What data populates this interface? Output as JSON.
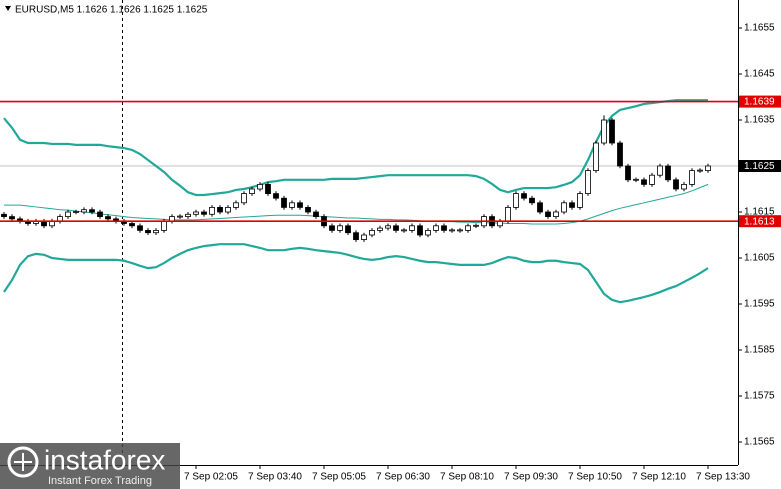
{
  "chart_data": {
    "type": "candlestick",
    "title": "EURUSD,M5  1.1626 1.1626 1.1625 1.1625",
    "categories": [
      null,
      null,
      null,
      null,
      null,
      null,
      null,
      null,
      null,
      null,
      null,
      null,
      null,
      null,
      null,
      null,
      null,
      null,
      null,
      null,
      null,
      null,
      null,
      null,
      "7 Sep 02:05",
      null,
      null,
      null,
      null,
      null,
      null,
      null,
      "7 Sep 03:40",
      null,
      null,
      null,
      null,
      null,
      null,
      null,
      "7 Sep 05:05",
      null,
      null,
      null,
      null,
      null,
      null,
      null,
      "7 Sep 06:30",
      null,
      null,
      null,
      null,
      null,
      null,
      null,
      "7 Sep 08:10",
      null,
      null,
      null,
      null,
      null,
      null,
      null,
      "7 Sep 09:30",
      null,
      null,
      null,
      null,
      null,
      null,
      null,
      "7 Sep 10:50",
      null,
      null,
      null,
      null,
      null,
      null,
      null,
      "7 Sep 12:10",
      null,
      null,
      null,
      null,
      null,
      null,
      null,
      "7 Sep 13:30"
    ],
    "open": [
      1.16145,
      1.1614,
      1.16135,
      1.1613,
      1.16125,
      1.1613,
      1.1612,
      1.1613,
      1.1614,
      1.1615,
      1.1615,
      1.16155,
      1.1615,
      1.1614,
      1.16135,
      1.1613,
      1.16125,
      1.1612,
      1.1611,
      1.16105,
      1.1611,
      1.1613,
      1.1614,
      1.1614,
      1.16145,
      1.1615,
      1.16145,
      1.1616,
      1.1615,
      1.1616,
      1.1617,
      1.1619,
      1.162,
      1.1621,
      1.1619,
      1.1618,
      1.1616,
      1.1617,
      1.1616,
      1.1615,
      1.1614,
      1.1612,
      1.1611,
      1.1612,
      1.16105,
      1.1609,
      1.161,
      1.1611,
      1.16115,
      1.1612,
      1.1611,
      1.1611,
      1.1612,
      1.161,
      1.1611,
      1.1612,
      1.1611,
      1.1611,
      1.1611,
      1.1612,
      1.1612,
      1.1614,
      1.1612,
      1.1613,
      1.1616,
      1.1619,
      1.1618,
      1.1617,
      1.1615,
      1.1614,
      1.1615,
      1.1617,
      1.1616,
      1.1619,
      1.1624,
      1.163,
      1.1635,
      1.163,
      1.1625,
      1.1622,
      1.1622,
      1.1621,
      1.1623,
      1.1625,
      1.1622,
      1.162,
      1.1621,
      1.1624,
      1.1624
    ],
    "high": [
      1.1615,
      1.16145,
      1.1614,
      1.16135,
      1.16135,
      1.16135,
      1.16135,
      1.16145,
      1.16155,
      1.16155,
      1.1616,
      1.1616,
      1.16155,
      1.16145,
      1.1614,
      1.16135,
      1.1613,
      1.16125,
      1.16115,
      1.16115,
      1.16135,
      1.16145,
      1.16145,
      1.1615,
      1.16155,
      1.16155,
      1.16165,
      1.16165,
      1.16165,
      1.16175,
      1.16195,
      1.16205,
      1.16215,
      1.16215,
      1.16195,
      1.16185,
      1.16175,
      1.16175,
      1.16165,
      1.16155,
      1.16145,
      1.16125,
      1.16125,
      1.16125,
      1.1611,
      1.16105,
      1.16115,
      1.1612,
      1.16125,
      1.16125,
      1.16115,
      1.16125,
      1.16125,
      1.16115,
      1.16125,
      1.16125,
      1.16115,
      1.16115,
      1.16125,
      1.16125,
      1.16145,
      1.16145,
      1.16135,
      1.16165,
      1.16195,
      1.16195,
      1.16185,
      1.16175,
      1.16155,
      1.16155,
      1.16175,
      1.16175,
      1.16195,
      1.16245,
      1.16305,
      1.1636,
      1.16355,
      1.16305,
      1.16255,
      1.16225,
      1.16225,
      1.16235,
      1.16255,
      1.16255,
      1.16225,
      1.16215,
      1.16245,
      1.16245,
      1.16255
    ],
    "low": [
      1.16135,
      1.1613,
      1.16125,
      1.1612,
      1.1612,
      1.16115,
      1.16115,
      1.16125,
      1.16135,
      1.16145,
      1.16145,
      1.16145,
      1.16135,
      1.1613,
      1.16125,
      1.1612,
      1.16115,
      1.16105,
      1.161,
      1.161,
      1.16105,
      1.16125,
      1.16135,
      1.16135,
      1.1614,
      1.1614,
      1.1614,
      1.16145,
      1.16145,
      1.16155,
      1.16165,
      1.16185,
      1.16195,
      1.16185,
      1.16175,
      1.16155,
      1.16155,
      1.16155,
      1.16145,
      1.16135,
      1.16115,
      1.16105,
      1.16105,
      1.161,
      1.16085,
      1.16085,
      1.16095,
      1.16105,
      1.1611,
      1.16105,
      1.16105,
      1.16105,
      1.16095,
      1.16095,
      1.16105,
      1.16105,
      1.16105,
      1.16105,
      1.16105,
      1.16115,
      1.16115,
      1.16115,
      1.16115,
      1.16125,
      1.16155,
      1.16175,
      1.16165,
      1.16145,
      1.16135,
      1.16135,
      1.16145,
      1.16155,
      1.16155,
      1.16185,
      1.16235,
      1.16295,
      1.16295,
      1.16245,
      1.16215,
      1.16215,
      1.16205,
      1.16205,
      1.16225,
      1.16215,
      1.16195,
      1.16195,
      1.16205,
      1.16235,
      1.16235
    ],
    "close": [
      1.1614,
      1.16135,
      1.1613,
      1.16125,
      1.1613,
      1.1612,
      1.1613,
      1.1614,
      1.1615,
      1.1615,
      1.16155,
      1.1615,
      1.1614,
      1.16135,
      1.1613,
      1.16125,
      1.1612,
      1.1611,
      1.16105,
      1.1611,
      1.1613,
      1.1614,
      1.1614,
      1.16145,
      1.1615,
      1.16145,
      1.1616,
      1.1615,
      1.1616,
      1.1617,
      1.1619,
      1.162,
      1.1621,
      1.1619,
      1.1618,
      1.1616,
      1.1617,
      1.1616,
      1.1615,
      1.1614,
      1.1612,
      1.1611,
      1.1612,
      1.16105,
      1.1609,
      1.161,
      1.1611,
      1.16115,
      1.1612,
      1.1611,
      1.1611,
      1.1612,
      1.161,
      1.1611,
      1.1612,
      1.1611,
      1.1611,
      1.1611,
      1.1612,
      1.1612,
      1.1614,
      1.1612,
      1.1613,
      1.1616,
      1.1619,
      1.1618,
      1.1617,
      1.1615,
      1.1614,
      1.1615,
      1.1617,
      1.1616,
      1.1619,
      1.1624,
      1.163,
      1.1635,
      1.163,
      1.1625,
      1.1622,
      1.1622,
      1.1621,
      1.1623,
      1.1625,
      1.1622,
      1.162,
      1.1621,
      1.1624,
      1.1624,
      1.1625
    ],
    "upper_band": [
      1.16354,
      1.16333,
      1.16307,
      1.163,
      1.163,
      1.163,
      1.16298,
      1.16298,
      1.16298,
      1.16296,
      1.16296,
      1.16296,
      1.16296,
      1.16293,
      1.16291,
      1.16289,
      1.16285,
      1.16276,
      1.16263,
      1.1625,
      1.16237,
      1.1622,
      1.16207,
      1.16193,
      1.16187,
      1.16187,
      1.16189,
      1.16191,
      1.16193,
      1.16198,
      1.162,
      1.16204,
      1.16209,
      1.16215,
      1.16217,
      1.1622,
      1.1622,
      1.1622,
      1.1622,
      1.1622,
      1.1622,
      1.16222,
      1.16222,
      1.16222,
      1.16222,
      1.16224,
      1.16226,
      1.16228,
      1.1623,
      1.1623,
      1.1623,
      1.1623,
      1.1623,
      1.1623,
      1.1623,
      1.1623,
      1.1623,
      1.1623,
      1.1623,
      1.16228,
      1.16222,
      1.16211,
      1.16198,
      1.16193,
      1.16198,
      1.16202,
      1.16202,
      1.16202,
      1.16202,
      1.16204,
      1.16209,
      1.16215,
      1.1623,
      1.16263,
      1.16302,
      1.16337,
      1.16359,
      1.16372,
      1.16376,
      1.1638,
      1.16385,
      1.16387,
      1.16389,
      1.16391,
      1.16393,
      1.16393,
      1.16393,
      1.16393,
      1.16393
    ],
    "middle_band": [
      1.16165,
      1.16165,
      1.16165,
      1.16163,
      1.16161,
      1.16159,
      1.16157,
      1.16155,
      1.16154,
      1.16152,
      1.1615,
      1.16148,
      1.16146,
      1.16144,
      1.16142,
      1.1614,
      1.16138,
      1.16137,
      1.16136,
      1.16135,
      1.16134,
      1.16133,
      1.16133,
      1.16133,
      1.16133,
      1.16134,
      1.16135,
      1.16136,
      1.16137,
      1.16138,
      1.16139,
      1.1614,
      1.16141,
      1.16142,
      1.16143,
      1.16143,
      1.16143,
      1.16143,
      1.16142,
      1.16141,
      1.1614,
      1.16139,
      1.16138,
      1.16137,
      1.16137,
      1.16136,
      1.16135,
      1.16134,
      1.16134,
      1.16133,
      1.16133,
      1.16132,
      1.16131,
      1.1613,
      1.1613,
      1.16129,
      1.16129,
      1.16128,
      1.16128,
      1.16127,
      1.16127,
      1.16126,
      1.16126,
      1.16125,
      1.16125,
      1.16125,
      1.16124,
      1.16124,
      1.16124,
      1.16124,
      1.16125,
      1.16127,
      1.1613,
      1.16135,
      1.16141,
      1.16147,
      1.16153,
      1.16158,
      1.16162,
      1.16166,
      1.1617,
      1.16174,
      1.16178,
      1.16182,
      1.16186,
      1.1619,
      1.16196,
      1.16203,
      1.1621
    ],
    "lower_band": [
      1.15976,
      1.16002,
      1.16035,
      1.16054,
      1.16059,
      1.16057,
      1.1605,
      1.16048,
      1.16046,
      1.16046,
      1.16046,
      1.16046,
      1.16046,
      1.16046,
      1.16046,
      1.16044,
      1.16039,
      1.16033,
      1.16028,
      1.1603,
      1.16039,
      1.1605,
      1.16059,
      1.16067,
      1.16072,
      1.16076,
      1.16078,
      1.1608,
      1.1608,
      1.1608,
      1.1608,
      1.16076,
      1.16072,
      1.16067,
      1.16067,
      1.16067,
      1.1607,
      1.16072,
      1.1607,
      1.16067,
      1.16065,
      1.16063,
      1.16061,
      1.16057,
      1.16052,
      1.16048,
      1.16046,
      1.16048,
      1.16052,
      1.16054,
      1.16052,
      1.16048,
      1.16044,
      1.16041,
      1.16041,
      1.16039,
      1.16037,
      1.16035,
      1.16035,
      1.16035,
      1.16035,
      1.16039,
      1.16046,
      1.16052,
      1.1605,
      1.16044,
      1.16041,
      1.16041,
      1.16044,
      1.16044,
      1.16041,
      1.16039,
      1.16037,
      1.16024,
      1.15998,
      1.15972,
      1.15959,
      1.15954,
      1.15957,
      1.15961,
      1.15965,
      1.1597,
      1.15976,
      1.15983,
      1.15989,
      1.15998,
      1.16007,
      1.16017,
      1.16028
    ],
    "up_color": "#ffffff",
    "down_color": "#000000",
    "wick_color": "#000000",
    "band_color": "#20a898",
    "ylim": [
      1.156,
      1.166
    ],
    "yticks": [
      1.1655,
      1.1645,
      1.1635,
      1.1625,
      1.1615,
      1.1605,
      1.1595,
      1.1585,
      1.1575,
      1.1565
    ],
    "levels": [
      1.1639,
      1.1613
    ],
    "level_color": "#e00000",
    "last_price": 1.1625,
    "grid": false
  },
  "watermark": {
    "brand": "instaforex",
    "tagline": "Instant Forex Trading"
  }
}
